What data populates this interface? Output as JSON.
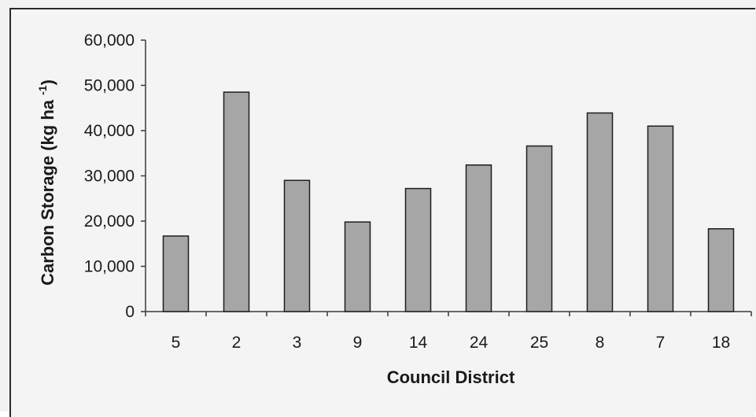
{
  "chart_data": {
    "type": "bar",
    "title": "",
    "xlabel": "Council District",
    "ylabel": "Carbon Storage (kg ha",
    "ylabel_superscript": "-1",
    "ylabel_close": ")",
    "categories": [
      "5",
      "2",
      "3",
      "9",
      "14",
      "24",
      "25",
      "8",
      "7",
      "18"
    ],
    "values": [
      16700,
      48500,
      29000,
      19800,
      27200,
      32400,
      36600,
      43900,
      41000,
      18300
    ],
    "ylim": [
      0,
      60000
    ],
    "yticks": [
      0,
      10000,
      20000,
      30000,
      40000,
      50000,
      60000
    ],
    "ytick_labels": [
      "0",
      "10,000",
      "20,000",
      "30,000",
      "40,000",
      "50,000",
      "60,000"
    ],
    "grid": false,
    "legend": "none",
    "colors": {
      "bar_fill": "#a6a6a6",
      "bar_stroke": "#1e1e1e",
      "axis": "#3a3a3a",
      "background": "#f4f4f4"
    }
  }
}
